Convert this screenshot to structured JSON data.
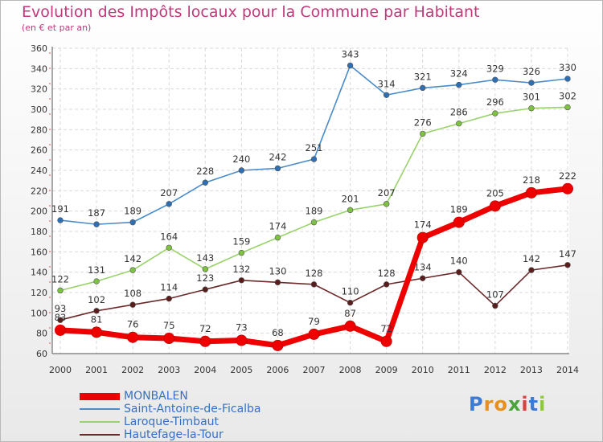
{
  "chart_data": {
    "type": "line",
    "title": "Evolution des Impôts locaux pour la Commune par Habitant",
    "subtitle": "(en € et par an)",
    "xlabel": "",
    "ylabel": "",
    "ylim": [
      60,
      360
    ],
    "yticks": [
      60,
      80,
      100,
      120,
      140,
      160,
      180,
      200,
      220,
      240,
      260,
      280,
      300,
      320,
      340,
      360
    ],
    "grid": true,
    "categories": [
      "2000",
      "2001",
      "2002",
      "2003",
      "2004",
      "2005",
      "2006",
      "2007",
      "2008",
      "2009",
      "2010",
      "2011",
      "2012",
      "2013",
      "2014"
    ],
    "series": [
      {
        "name": "Saint-Antoine-de-Ficalba",
        "color": "#4a8bc9",
        "marker_color": "#2e6fb3",
        "values": [
          191,
          187,
          189,
          207,
          228,
          240,
          242,
          251,
          343,
          314,
          321,
          324,
          329,
          326,
          330
        ],
        "labels": [
          "191",
          "187",
          "189",
          "207",
          "228",
          "240",
          "242",
          "251",
          "343",
          "314",
          "321",
          "324",
          "329",
          "326",
          "330"
        ]
      },
      {
        "name": "Laroque-Timbaut",
        "color": "#99d26b",
        "marker_color": "#7ec242",
        "values": [
          122,
          131,
          142,
          164,
          143,
          159,
          174,
          189,
          201,
          207,
          276,
          286,
          296,
          301,
          302
        ],
        "labels": [
          "122",
          "131",
          "142",
          "164",
          "143",
          "159",
          "174",
          "189",
          "201",
          "207",
          "276",
          "286",
          "296",
          "301",
          "302"
        ]
      },
      {
        "name": "Hautefage-la-Tour",
        "color": "#6b2a2a",
        "marker_color": "#5a1d1d",
        "values": [
          93,
          102,
          108,
          114,
          123,
          132,
          130,
          128,
          110,
          128,
          134,
          140,
          107,
          142,
          147
        ],
        "labels": [
          "93",
          "102",
          "108",
          "114",
          "123",
          "132",
          "130",
          "128",
          "110",
          "128",
          "134",
          "140",
          "107",
          "142",
          "147"
        ]
      },
      {
        "name": "MONBALEN",
        "color": "#ee0000",
        "marker_color": "#ee0000",
        "values": [
          83,
          81,
          76,
          75,
          72,
          73,
          68,
          79,
          87,
          72,
          174,
          189,
          205,
          218,
          222
        ],
        "labels": [
          "83",
          "81",
          "76",
          "75",
          "72",
          "73",
          "68",
          "79",
          "87",
          "72",
          "174",
          "189",
          "205",
          "218",
          "222"
        ]
      }
    ],
    "legend": {
      "position": "bottom-left",
      "order": [
        "MONBALEN",
        "Saint-Antoine-de-Ficalba",
        "Laroque-Timbaut",
        "Hautefage-la-Tour"
      ]
    }
  },
  "brand": {
    "letters": [
      "P",
      "r",
      "o",
      "x",
      "i",
      "t",
      "i"
    ],
    "colors": [
      "#3b7bd4",
      "#e8901e",
      "#e8901e",
      "#4aa23a",
      "#d94040",
      "#3b7bd4",
      "#8fc93a"
    ]
  }
}
